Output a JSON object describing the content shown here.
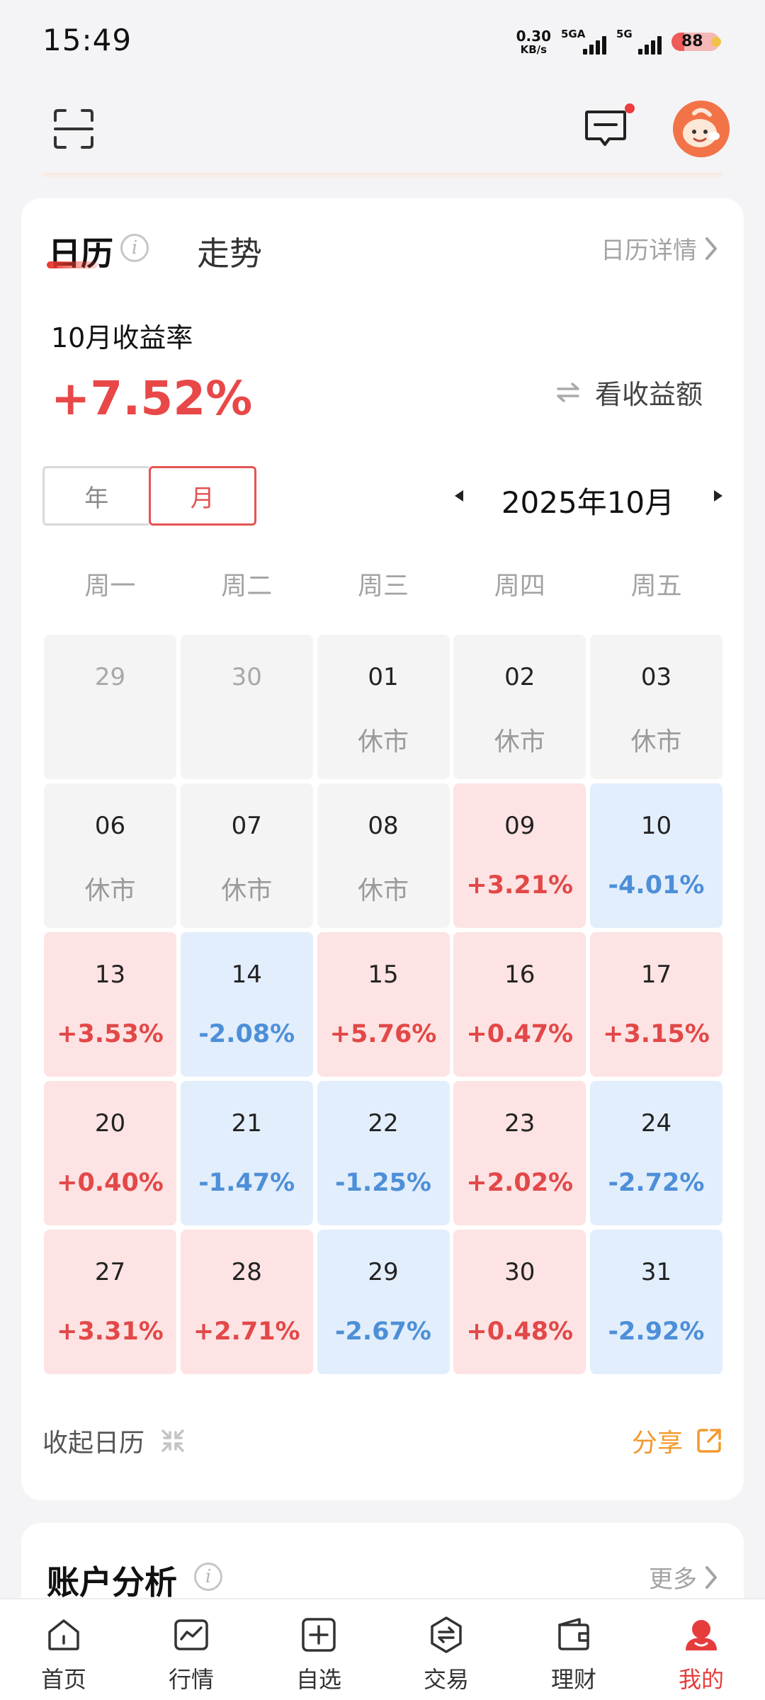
{
  "status_bar": {
    "time": "15:49",
    "net_speed_value": "0.30",
    "net_speed_unit": "KB/s",
    "signal1_label": "5GA",
    "signal2_label": "5G",
    "battery": "88"
  },
  "calendar": {
    "tab_calendar": "日历",
    "tab_trend": "走势",
    "detail_label": "日历详情",
    "month_label": "10月收益率",
    "rate_value": "+7.52%",
    "toggle_amount_label": "看收益额",
    "segment_year": "年",
    "segment_month": "月",
    "current_month": "2025年10月",
    "weekdays": [
      "周一",
      "周二",
      "周三",
      "周四",
      "周五"
    ],
    "days": [
      {
        "day": "29",
        "value": "",
        "state": "other"
      },
      {
        "day": "30",
        "value": "",
        "state": "other"
      },
      {
        "day": "01",
        "value": "休市",
        "state": "closed"
      },
      {
        "day": "02",
        "value": "休市",
        "state": "closed"
      },
      {
        "day": "03",
        "value": "休市",
        "state": "closed"
      },
      {
        "day": "06",
        "value": "休市",
        "state": "closed"
      },
      {
        "day": "07",
        "value": "休市",
        "state": "closed"
      },
      {
        "day": "08",
        "value": "休市",
        "state": "closed"
      },
      {
        "day": "09",
        "value": "+3.21%",
        "state": "up"
      },
      {
        "day": "10",
        "value": "-4.01%",
        "state": "down"
      },
      {
        "day": "13",
        "value": "+3.53%",
        "state": "up"
      },
      {
        "day": "14",
        "value": "-2.08%",
        "state": "down"
      },
      {
        "day": "15",
        "value": "+5.76%",
        "state": "up"
      },
      {
        "day": "16",
        "value": "+0.47%",
        "state": "up"
      },
      {
        "day": "17",
        "value": "+3.15%",
        "state": "up"
      },
      {
        "day": "20",
        "value": "+0.40%",
        "state": "up"
      },
      {
        "day": "21",
        "value": "-1.47%",
        "state": "down"
      },
      {
        "day": "22",
        "value": "-1.25%",
        "state": "down"
      },
      {
        "day": "23",
        "value": "+2.02%",
        "state": "up"
      },
      {
        "day": "24",
        "value": "-2.72%",
        "state": "down"
      },
      {
        "day": "27",
        "value": "+3.31%",
        "state": "up"
      },
      {
        "day": "28",
        "value": "+2.71%",
        "state": "up"
      },
      {
        "day": "29",
        "value": "-2.67%",
        "state": "down"
      },
      {
        "day": "30",
        "value": "+0.48%",
        "state": "up"
      },
      {
        "day": "31",
        "value": "-2.92%",
        "state": "down"
      }
    ],
    "collapse_label": "收起日历",
    "share_label": "分享"
  },
  "account_analysis": {
    "title": "账户分析",
    "more_label": "更多"
  },
  "bottom_nav": [
    {
      "label": "首页",
      "icon": "home-icon"
    },
    {
      "label": "行情",
      "icon": "market-chart-icon"
    },
    {
      "label": "自选",
      "icon": "watchlist-add-icon"
    },
    {
      "label": "交易",
      "icon": "trade-exchange-icon"
    },
    {
      "label": "理财",
      "icon": "wallet-icon"
    },
    {
      "label": "我的",
      "icon": "profile-icon"
    }
  ],
  "colors": {
    "accent_red": "#e63c3c",
    "gain_red": "#e34848",
    "loss_blue": "#4d8fd8",
    "share_orange": "#f29a2e"
  }
}
